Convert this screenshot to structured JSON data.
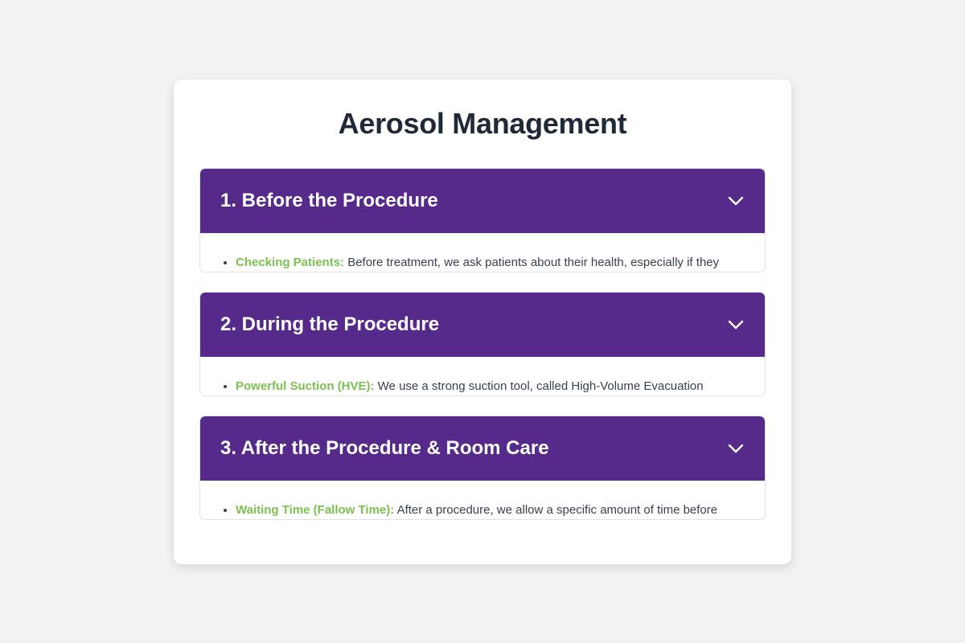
{
  "page": {
    "title": "Aerosol Management"
  },
  "colors": {
    "background": "#f2f2f2",
    "card": "#ffffff",
    "header_purple": "#552a8a",
    "term_green": "#7cc150",
    "title_text": "#1f2937",
    "body_text": "#374151"
  },
  "sections": [
    {
      "title": "1. Before the Procedure",
      "icon": "chevron-down-icon",
      "item_term": "Checking Patients:",
      "item_text": " Before treatment, we ask patients about their health, especially if they"
    },
    {
      "title": "2. During the Procedure",
      "icon": "chevron-down-icon",
      "item_term": "Powerful Suction (HVE):",
      "item_text": " We use a strong suction tool, called High-Volume Evacuation"
    },
    {
      "title": "3. After the Procedure & Room Care",
      "icon": "chevron-down-icon",
      "item_term": "Waiting Time (Fallow Time):",
      "item_text": " After a procedure, we allow a specific amount of time before"
    }
  ]
}
